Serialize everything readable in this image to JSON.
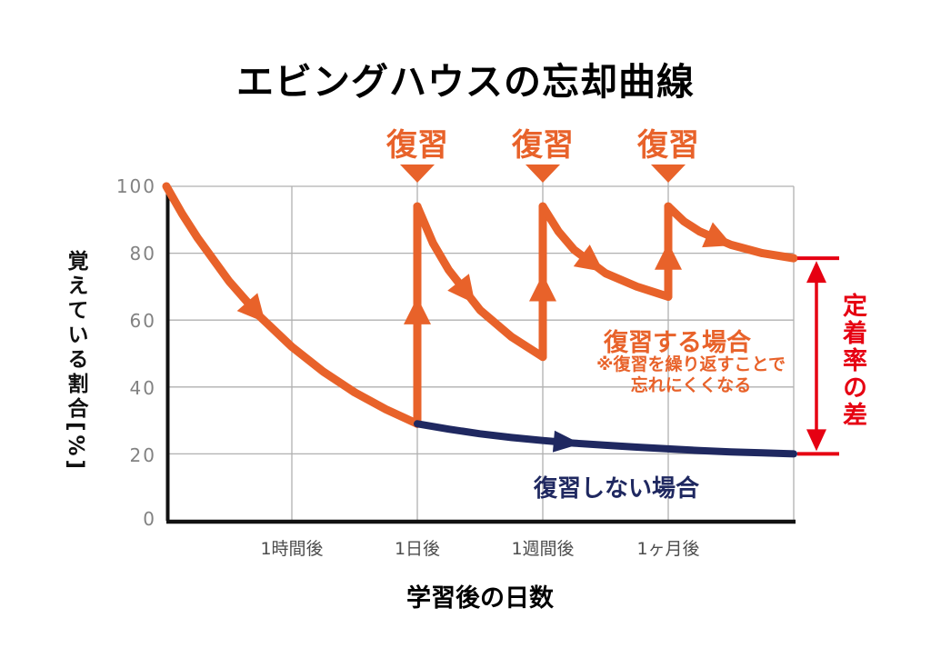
{
  "page": {
    "title": "エビングハウスの忘却曲線"
  },
  "review_marker": {
    "label": "復習"
  },
  "axes": {
    "y_title": "覚えている割合[%]",
    "x_title": "学習後の日数",
    "y_ticks": [
      "100",
      "80",
      "60",
      "40",
      "20",
      "0"
    ],
    "x_ticks": [
      "1時間後",
      "1日後",
      "1週間後",
      "1ヶ月後"
    ]
  },
  "annotations": {
    "with_review_title": "復習する場合",
    "with_review_note_line1": "※復習を繰り返すことで",
    "with_review_note_line2": "忘れにくくなる",
    "without_review_label": "復習しない場合",
    "retention_gap_label": "定着率の差"
  },
  "colors": {
    "orange": "#E8622A",
    "navy": "#1F2860",
    "red": "#E60012",
    "grid": "#B0B0B0",
    "axis": "#111111"
  },
  "chart_data": {
    "type": "line",
    "title": "エビングハウスの忘却曲線",
    "xlabel": "学習後の日数",
    "ylabel": "覚えている割合[%]",
    "ylim": [
      0,
      100
    ],
    "grid": true,
    "x_tick_labels": [
      "1時間後",
      "1日後",
      "1週間後",
      "1ヶ月後"
    ],
    "x_tick_units": [
      1,
      2,
      3,
      4
    ],
    "y_tick_values": [
      100,
      80,
      60,
      40,
      20,
      0
    ],
    "review_positions_u": [
      2,
      3,
      4
    ],
    "series": [
      {
        "name": "復習する場合",
        "color_key": "orange",
        "segments": [
          {
            "kind": "decay",
            "points": [
              [
                0,
                100
              ],
              [
                0.125,
                91.8
              ],
              [
                0.25,
                84.5
              ],
              [
                0.5,
                71.6
              ],
              [
                0.75,
                60.9
              ],
              [
                1,
                52
              ],
              [
                1.25,
                44.6
              ],
              [
                1.5,
                38.4
              ],
              [
                1.75,
                33.3
              ],
              [
                2,
                29
              ]
            ]
          },
          {
            "kind": "review-rise",
            "points": [
              [
                2,
                29
              ],
              [
                2,
                94
              ]
            ]
          },
          {
            "kind": "decay",
            "points": [
              [
                2,
                94
              ],
              [
                2.125,
                83
              ],
              [
                2.25,
                75
              ],
              [
                2.5,
                63
              ],
              [
                2.75,
                55
              ],
              [
                3,
                49
              ]
            ]
          },
          {
            "kind": "review-rise",
            "points": [
              [
                3,
                49
              ],
              [
                3,
                94
              ]
            ]
          },
          {
            "kind": "decay",
            "points": [
              [
                3,
                94
              ],
              [
                3.125,
                86.5
              ],
              [
                3.25,
                81
              ],
              [
                3.5,
                74
              ],
              [
                3.75,
                70
              ],
              [
                4,
                67
              ]
            ]
          },
          {
            "kind": "review-rise",
            "points": [
              [
                4,
                67
              ],
              [
                4,
                94
              ]
            ]
          },
          {
            "kind": "decay",
            "points": [
              [
                4,
                94
              ],
              [
                4.125,
                89.5
              ],
              [
                4.25,
                86.5
              ],
              [
                4.5,
                82.5
              ],
              [
                4.75,
                80
              ],
              [
                5,
                78.5
              ]
            ]
          }
        ]
      },
      {
        "name": "復習しない場合",
        "color_key": "navy",
        "segments": [
          {
            "kind": "decay",
            "points": [
              [
                2,
                29
              ],
              [
                2.25,
                27.4
              ],
              [
                2.5,
                26
              ],
              [
                2.75,
                24.9
              ],
              [
                3,
                24
              ],
              [
                3.25,
                23.2
              ],
              [
                3.5,
                22.6
              ],
              [
                3.75,
                22
              ],
              [
                4,
                21.5
              ],
              [
                4.25,
                21
              ],
              [
                4.5,
                20.6
              ],
              [
                4.75,
                20.3
              ],
              [
                5,
                20
              ]
            ]
          }
        ]
      }
    ],
    "arrows": [
      {
        "series": 0,
        "segment": 0,
        "t": 0.44
      },
      {
        "series": 0,
        "segment": 1,
        "t": 0.52
      },
      {
        "series": 0,
        "segment": 2,
        "t": 0.5
      },
      {
        "series": 0,
        "segment": 3,
        "t": 0.46
      },
      {
        "series": 0,
        "segment": 4,
        "t": 0.48
      },
      {
        "series": 0,
        "segment": 5,
        "t": 0.45
      },
      {
        "series": 0,
        "segment": 6,
        "t": 0.45
      },
      {
        "series": 1,
        "segment": 0,
        "t": 0.4
      }
    ],
    "difference_arrow": {
      "label": "定着率の差",
      "from_v": 20,
      "to_v": 78.5
    }
  }
}
